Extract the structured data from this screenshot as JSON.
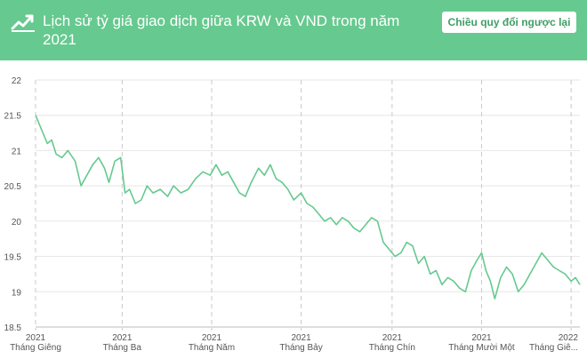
{
  "header": {
    "title": "Lịch sử tỷ giá giao dịch giữa KRW và VND trong năm 2021",
    "swap_label": "Chiều quy đổi ngược lại",
    "icon": "trend-chart-icon"
  },
  "colors": {
    "accent": "#66c98f",
    "button_text": "#3f9f66"
  },
  "chart_data": {
    "type": "line",
    "title": "",
    "xlabel": "",
    "ylabel": "",
    "ylim": [
      18.5,
      22
    ],
    "yticks": [
      18.5,
      19,
      19.5,
      20,
      20.5,
      21,
      21.5,
      22
    ],
    "xlim": [
      "2021-01-01",
      "2022-01-07"
    ],
    "xticks": [
      {
        "date": "2021-01-01",
        "year": "2021",
        "label": "Tháng Giêng"
      },
      {
        "date": "2021-03-01",
        "year": "2021",
        "label": "Tháng Ba"
      },
      {
        "date": "2021-05-01",
        "year": "2021",
        "label": "Tháng Năm"
      },
      {
        "date": "2021-07-01",
        "year": "2021",
        "label": "Tháng Bảy"
      },
      {
        "date": "2021-09-01",
        "year": "2021",
        "label": "Tháng Chín"
      },
      {
        "date": "2021-11-01",
        "year": "2021",
        "label": "Tháng Mười Một"
      },
      {
        "date": "2022-01-01",
        "year": "2022",
        "label": "Tháng Giê..."
      }
    ],
    "grid": true,
    "series": [
      {
        "name": "",
        "x": [
          "2021-01-01",
          "2021-01-05",
          "2021-01-09",
          "2021-01-12",
          "2021-01-15",
          "2021-01-19",
          "2021-01-23",
          "2021-01-28",
          "2021-02-01",
          "2021-02-05",
          "2021-02-09",
          "2021-02-13",
          "2021-02-17",
          "2021-02-20",
          "2021-02-24",
          "2021-02-28",
          "2021-03-03",
          "2021-03-06",
          "2021-03-10",
          "2021-03-14",
          "2021-03-18",
          "2021-03-22",
          "2021-03-27",
          "2021-04-01",
          "2021-04-05",
          "2021-04-10",
          "2021-04-15",
          "2021-04-20",
          "2021-04-25",
          "2021-04-30",
          "2021-05-04",
          "2021-05-08",
          "2021-05-12",
          "2021-05-16",
          "2021-05-20",
          "2021-05-24",
          "2021-05-28",
          "2021-06-02",
          "2021-06-06",
          "2021-06-10",
          "2021-06-14",
          "2021-06-18",
          "2021-06-22",
          "2021-06-26",
          "2021-07-01",
          "2021-07-05",
          "2021-07-09",
          "2021-07-13",
          "2021-07-17",
          "2021-07-21",
          "2021-07-25",
          "2021-07-29",
          "2021-08-02",
          "2021-08-06",
          "2021-08-10",
          "2021-08-14",
          "2021-08-18",
          "2021-08-22",
          "2021-08-26",
          "2021-08-30",
          "2021-09-03",
          "2021-09-07",
          "2021-09-11",
          "2021-09-15",
          "2021-09-19",
          "2021-09-23",
          "2021-09-27",
          "2021-10-01",
          "2021-10-05",
          "2021-10-09",
          "2021-10-13",
          "2021-10-17",
          "2021-10-21",
          "2021-10-25",
          "2021-10-29",
          "2021-11-01",
          "2021-11-04",
          "2021-11-07",
          "2021-11-10",
          "2021-11-14",
          "2021-11-18",
          "2021-11-22",
          "2021-11-26",
          "2021-11-30",
          "2021-12-04",
          "2021-12-08",
          "2021-12-12",
          "2021-12-16",
          "2021-12-20",
          "2021-12-24",
          "2021-12-28",
          "2022-01-01",
          "2022-01-04",
          "2022-01-07"
        ],
        "values": [
          21.5,
          21.3,
          21.1,
          21.15,
          20.95,
          20.9,
          21.0,
          20.85,
          20.5,
          20.65,
          20.8,
          20.9,
          20.75,
          20.55,
          20.85,
          20.9,
          20.4,
          20.45,
          20.25,
          20.3,
          20.5,
          20.4,
          20.45,
          20.35,
          20.5,
          20.4,
          20.45,
          20.6,
          20.7,
          20.65,
          20.8,
          20.65,
          20.7,
          20.55,
          20.4,
          20.35,
          20.55,
          20.75,
          20.65,
          20.8,
          20.6,
          20.55,
          20.45,
          20.3,
          20.4,
          20.25,
          20.2,
          20.1,
          20.0,
          20.05,
          19.95,
          20.05,
          20.0,
          19.9,
          19.85,
          19.95,
          20.05,
          20.0,
          19.7,
          19.6,
          19.5,
          19.55,
          19.7,
          19.65,
          19.4,
          19.5,
          19.25,
          19.3,
          19.1,
          19.2,
          19.15,
          19.05,
          19.0,
          19.3,
          19.45,
          19.55,
          19.3,
          19.15,
          18.9,
          19.2,
          19.35,
          19.25,
          19.0,
          19.1,
          19.25,
          19.4,
          19.55,
          19.45,
          19.35,
          19.3,
          19.25,
          19.15,
          19.2,
          19.1
        ]
      }
    ]
  }
}
